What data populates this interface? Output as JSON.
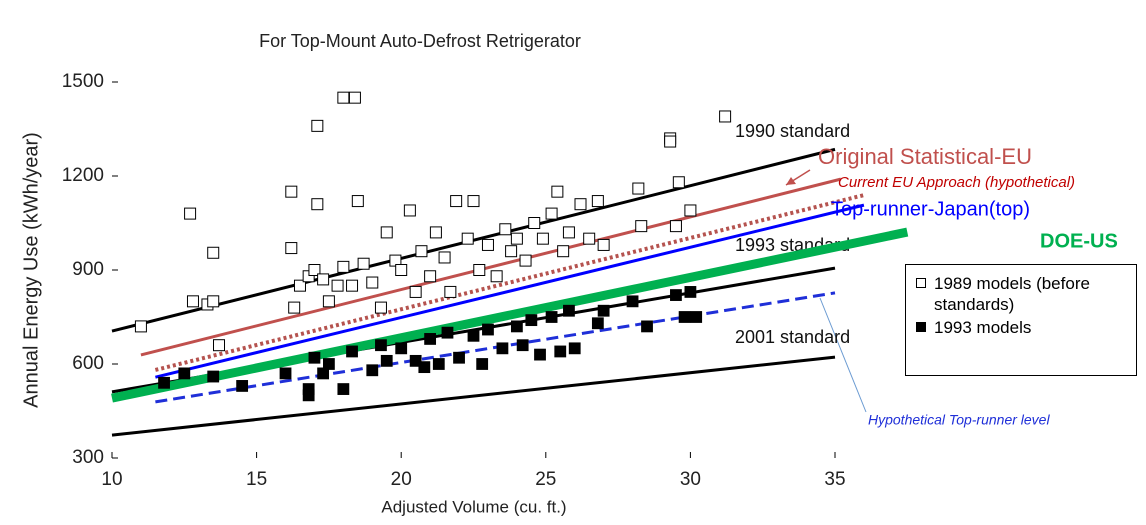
{
  "chart_data": {
    "type": "scatter",
    "title": "For Top-Mount Auto-Defrost Retrigerator",
    "x_label": "Adjusted Volume (cu. ft.)",
    "y_label": "Annual Energy Use (kWh/year)",
    "xlim": [
      10,
      35
    ],
    "ylim": [
      300,
      1500
    ],
    "xticks": [
      10,
      15,
      20,
      25,
      30,
      35
    ],
    "yticks": [
      300,
      600,
      900,
      1200,
      1500
    ],
    "series": [
      {
        "name": "1990 standard",
        "color": "#000000",
        "style": "solid",
        "x": [
          10,
          35
        ],
        "values": [
          705,
          1285
        ]
      },
      {
        "name": "Original Statistical-EU",
        "color": "#c0504d",
        "style": "solid",
        "x": [
          11,
          35.2
        ],
        "values": [
          629,
          1190
        ]
      },
      {
        "name": "Current EU Approach (hypothetical)",
        "color": "#b5534f",
        "style": "dotted",
        "x": [
          11.5,
          36
        ],
        "values": [
          581,
          1139
        ]
      },
      {
        "name": "Top-runner-Japan(top)",
        "color": "#0000ff",
        "style": "solid",
        "x": [
          11.5,
          36
        ],
        "values": [
          558,
          1107
        ]
      },
      {
        "name": "1993 standard",
        "color": "#000000",
        "style": "solid",
        "x": [
          10,
          35
        ],
        "values": [
          511,
          906
        ]
      },
      {
        "name": "DOE-US",
        "color": "#00b050",
        "style": "thick",
        "x": [
          10,
          37.5
        ],
        "values": [
          491,
          1021
        ]
      },
      {
        "name": "Hypothetical Top-runner level",
        "color": "#1f2fd8",
        "style": "dashed",
        "x": [
          11.5,
          35
        ],
        "values": [
          479,
          827
        ]
      },
      {
        "name": "2001 standard",
        "color": "#000000",
        "style": "solid",
        "x": [
          10,
          35
        ],
        "values": [
          373,
          622
        ]
      },
      {
        "name": "1989 models (before standards)",
        "color": "#ffffff",
        "style": "open-square",
        "x": [
          11,
          12.7,
          12.8,
          13.3,
          13.5,
          13.5,
          13.7,
          16.2,
          16.2,
          16.3,
          16.5,
          16.8,
          17,
          17.1,
          17.1,
          17.3,
          17.5,
          17.8,
          18,
          18,
          18.4,
          18.5,
          18.3,
          18.7,
          19,
          19.3,
          19.5,
          19.8,
          20,
          20.3,
          20.5,
          20.7,
          21,
          21.2,
          21.5,
          21.7,
          21.9,
          22.3,
          22.5,
          22.7,
          23,
          23.3,
          23.6,
          23.8,
          24,
          24.3,
          24.6,
          24.9,
          25.2,
          25.4,
          25.6,
          25.8,
          26.2,
          26.5,
          26.8,
          27,
          28.2,
          28.3,
          29.3,
          29.3,
          29.5,
          29.6,
          30,
          31.2
        ],
        "values": [
          720,
          1080,
          800,
          790,
          800,
          955,
          660,
          1150,
          970,
          780,
          850,
          880,
          900,
          1360,
          1110,
          870,
          800,
          850,
          1450,
          910,
          1450,
          1120,
          850,
          920,
          860,
          780,
          1020,
          930,
          900,
          1090,
          830,
          960,
          880,
          1020,
          940,
          830,
          1120,
          1000,
          1120,
          900,
          980,
          880,
          1030,
          960,
          1000,
          930,
          1050,
          1000,
          1080,
          1150,
          960,
          1020,
          1110,
          1000,
          1120,
          980,
          1160,
          1040,
          1320,
          1310,
          1040,
          1180,
          1090,
          1390
        ]
      },
      {
        "name": "1993 models",
        "color": "#000000",
        "style": "filled-square",
        "x": [
          11.8,
          12.5,
          13.5,
          14.5,
          16,
          16.8,
          16.8,
          17,
          17.3,
          17.5,
          18,
          18.3,
          19,
          19.3,
          19.5,
          20,
          20.5,
          20.8,
          21,
          21.3,
          21.6,
          22,
          22.5,
          22.8,
          23,
          23.5,
          24,
          24.2,
          24.5,
          24.8,
          25.2,
          25.5,
          25.8,
          26,
          26.8,
          27,
          28,
          28.5,
          29.5,
          29.8,
          30,
          30.2
        ],
        "values": [
          540,
          570,
          560,
          530,
          570,
          520,
          500,
          620,
          570,
          600,
          520,
          640,
          580,
          660,
          610,
          650,
          610,
          590,
          680,
          600,
          700,
          620,
          690,
          600,
          710,
          650,
          720,
          660,
          740,
          630,
          750,
          640,
          770,
          650,
          730,
          770,
          800,
          720,
          820,
          750,
          830,
          750
        ]
      }
    ]
  }
}
